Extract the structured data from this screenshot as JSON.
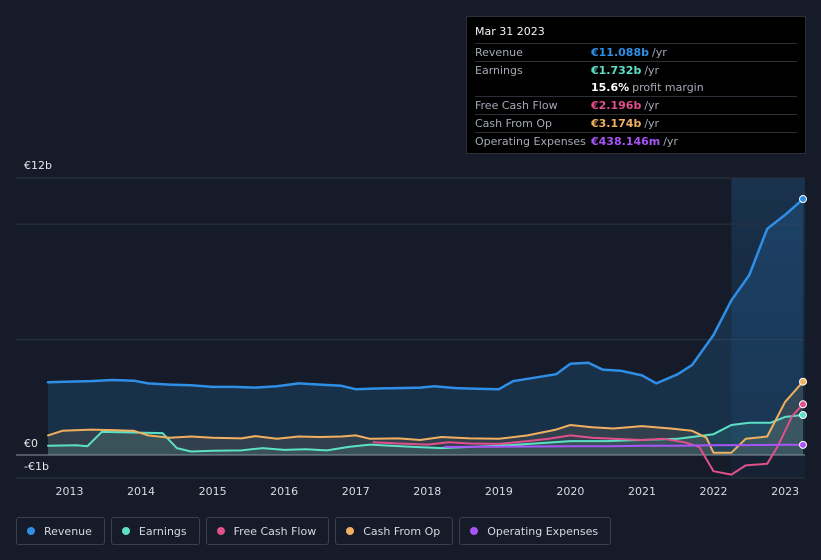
{
  "tooltip": {
    "date": "Mar 31 2023",
    "rows": [
      {
        "label": "Revenue",
        "value": "€11.088b",
        "unit": "/yr",
        "color": "#2f8ee6"
      },
      {
        "label": "Earnings",
        "value": "€1.732b",
        "unit": "/yr",
        "color": "#5ce0c6"
      },
      {
        "label": "",
        "value": "15.6%",
        "unit": "profit margin",
        "color": "#ffffff"
      },
      {
        "label": "Free Cash Flow",
        "value": "€2.196b",
        "unit": "/yr",
        "color": "#e0508a"
      },
      {
        "label": "Cash From Op",
        "value": "€3.174b",
        "unit": "/yr",
        "color": "#f0b060"
      },
      {
        "label": "Operating Expenses",
        "value": "€438.146m",
        "unit": "/yr",
        "color": "#a855f7"
      }
    ]
  },
  "legend": [
    {
      "label": "Revenue",
      "color": "#2f8ee6"
    },
    {
      "label": "Earnings",
      "color": "#5ce0c6"
    },
    {
      "label": "Free Cash Flow",
      "color": "#e0508a"
    },
    {
      "label": "Cash From Op",
      "color": "#f0b060"
    },
    {
      "label": "Operating Expenses",
      "color": "#a855f7"
    }
  ],
  "chart_data": {
    "type": "line",
    "y_labels": [
      "€12b",
      "€0",
      "-€1b"
    ],
    "ylim": [
      -1,
      12
    ],
    "xlim": [
      2012.7,
      2023.25
    ],
    "x_ticks": [
      "2013",
      "2014",
      "2015",
      "2016",
      "2017",
      "2018",
      "2019",
      "2020",
      "2021",
      "2022",
      "2023"
    ],
    "highlight_from": 2022.25,
    "series": [
      {
        "name": "Revenue",
        "color": "#2f8ee6",
        "fill": true,
        "points": [
          [
            2012.7,
            3.15
          ],
          [
            2013.0,
            3.18
          ],
          [
            2013.3,
            3.2
          ],
          [
            2013.6,
            3.25
          ],
          [
            2013.9,
            3.22
          ],
          [
            2014.1,
            3.1
          ],
          [
            2014.4,
            3.05
          ],
          [
            2014.7,
            3.02
          ],
          [
            2015.0,
            2.95
          ],
          [
            2015.3,
            2.95
          ],
          [
            2015.6,
            2.92
          ],
          [
            2015.9,
            2.98
          ],
          [
            2016.2,
            3.1
          ],
          [
            2016.5,
            3.05
          ],
          [
            2016.8,
            3.0
          ],
          [
            2017.0,
            2.85
          ],
          [
            2017.3,
            2.88
          ],
          [
            2017.6,
            2.9
          ],
          [
            2017.9,
            2.92
          ],
          [
            2018.1,
            2.98
          ],
          [
            2018.4,
            2.9
          ],
          [
            2018.7,
            2.87
          ],
          [
            2019.0,
            2.85
          ],
          [
            2019.2,
            3.2
          ],
          [
            2019.5,
            3.35
          ],
          [
            2019.8,
            3.5
          ],
          [
            2020.0,
            3.95
          ],
          [
            2020.25,
            4.0
          ],
          [
            2020.45,
            3.7
          ],
          [
            2020.7,
            3.65
          ],
          [
            2021.0,
            3.45
          ],
          [
            2021.2,
            3.1
          ],
          [
            2021.5,
            3.5
          ],
          [
            2021.7,
            3.9
          ],
          [
            2022.0,
            5.2
          ],
          [
            2022.25,
            6.7
          ],
          [
            2022.5,
            7.8
          ],
          [
            2022.75,
            9.8
          ],
          [
            2023.0,
            10.4
          ],
          [
            2023.25,
            11.088
          ]
        ]
      },
      {
        "name": "Earnings",
        "color": "#5ce0c6",
        "fill": true,
        "points": [
          [
            2012.7,
            0.4
          ],
          [
            2013.1,
            0.42
          ],
          [
            2013.25,
            0.38
          ],
          [
            2013.45,
            1.0
          ],
          [
            2013.8,
            0.98
          ],
          [
            2014.3,
            0.95
          ],
          [
            2014.5,
            0.3
          ],
          [
            2014.7,
            0.15
          ],
          [
            2015.0,
            0.18
          ],
          [
            2015.4,
            0.2
          ],
          [
            2015.7,
            0.3
          ],
          [
            2016.0,
            0.22
          ],
          [
            2016.3,
            0.25
          ],
          [
            2016.6,
            0.2
          ],
          [
            2016.9,
            0.35
          ],
          [
            2017.2,
            0.45
          ],
          [
            2017.5,
            0.4
          ],
          [
            2017.8,
            0.35
          ],
          [
            2018.2,
            0.3
          ],
          [
            2018.6,
            0.35
          ],
          [
            2019.0,
            0.4
          ],
          [
            2019.5,
            0.5
          ],
          [
            2020.0,
            0.6
          ],
          [
            2020.5,
            0.6
          ],
          [
            2021.0,
            0.65
          ],
          [
            2021.5,
            0.7
          ],
          [
            2022.0,
            0.9
          ],
          [
            2022.25,
            1.3
          ],
          [
            2022.5,
            1.4
          ],
          [
            2022.8,
            1.4
          ],
          [
            2023.0,
            1.65
          ],
          [
            2023.25,
            1.732
          ]
        ]
      },
      {
        "name": "Free Cash Flow",
        "color": "#e0508a",
        "fill": false,
        "points": [
          [
            2017.25,
            0.55
          ],
          [
            2017.6,
            0.5
          ],
          [
            2018.0,
            0.45
          ],
          [
            2018.3,
            0.55
          ],
          [
            2018.6,
            0.5
          ],
          [
            2019.0,
            0.48
          ],
          [
            2019.4,
            0.6
          ],
          [
            2019.7,
            0.7
          ],
          [
            2020.0,
            0.85
          ],
          [
            2020.3,
            0.75
          ],
          [
            2020.6,
            0.7
          ],
          [
            2021.0,
            0.65
          ],
          [
            2021.3,
            0.7
          ],
          [
            2021.6,
            0.55
          ],
          [
            2021.8,
            0.35
          ],
          [
            2022.0,
            -0.7
          ],
          [
            2022.25,
            -0.85
          ],
          [
            2022.45,
            -0.45
          ],
          [
            2022.75,
            -0.38
          ],
          [
            2022.9,
            0.4
          ],
          [
            2023.1,
            1.7
          ],
          [
            2023.25,
            2.196
          ]
        ]
      },
      {
        "name": "Cash From Op",
        "color": "#f0b060",
        "fill": true,
        "points": [
          [
            2012.7,
            0.85
          ],
          [
            2012.9,
            1.05
          ],
          [
            2013.3,
            1.1
          ],
          [
            2013.6,
            1.08
          ],
          [
            2013.9,
            1.05
          ],
          [
            2014.1,
            0.85
          ],
          [
            2014.4,
            0.75
          ],
          [
            2014.7,
            0.8
          ],
          [
            2015.0,
            0.75
          ],
          [
            2015.4,
            0.72
          ],
          [
            2015.6,
            0.82
          ],
          [
            2015.9,
            0.7
          ],
          [
            2016.2,
            0.8
          ],
          [
            2016.5,
            0.78
          ],
          [
            2016.8,
            0.8
          ],
          [
            2017.0,
            0.85
          ],
          [
            2017.2,
            0.7
          ],
          [
            2017.6,
            0.72
          ],
          [
            2017.9,
            0.65
          ],
          [
            2018.2,
            0.78
          ],
          [
            2018.6,
            0.72
          ],
          [
            2019.0,
            0.7
          ],
          [
            2019.4,
            0.85
          ],
          [
            2019.8,
            1.1
          ],
          [
            2020.0,
            1.3
          ],
          [
            2020.3,
            1.2
          ],
          [
            2020.6,
            1.15
          ],
          [
            2021.0,
            1.25
          ],
          [
            2021.4,
            1.15
          ],
          [
            2021.7,
            1.05
          ],
          [
            2021.9,
            0.75
          ],
          [
            2022.0,
            0.1
          ],
          [
            2022.25,
            0.1
          ],
          [
            2022.45,
            0.7
          ],
          [
            2022.75,
            0.8
          ],
          [
            2023.0,
            2.3
          ],
          [
            2023.25,
            3.174
          ]
        ]
      },
      {
        "name": "Operating Expenses",
        "color": "#a855f7",
        "fill": false,
        "points": [
          [
            2018.25,
            0.35
          ],
          [
            2019.0,
            0.36
          ],
          [
            2019.5,
            0.37
          ],
          [
            2020.0,
            0.38
          ],
          [
            2020.5,
            0.38
          ],
          [
            2021.0,
            0.4
          ],
          [
            2021.5,
            0.4
          ],
          [
            2022.0,
            0.42
          ],
          [
            2022.5,
            0.43
          ],
          [
            2023.0,
            0.44
          ],
          [
            2023.25,
            0.438
          ]
        ]
      }
    ]
  }
}
